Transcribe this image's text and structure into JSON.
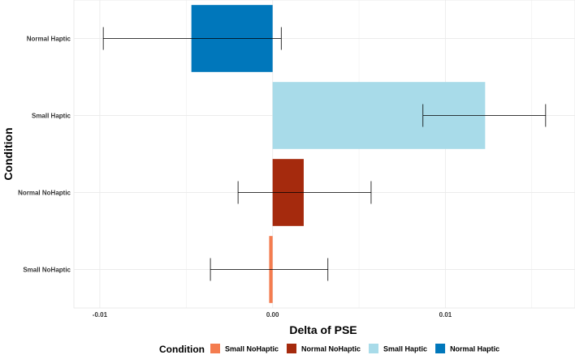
{
  "chart_data": {
    "type": "bar",
    "orientation": "horizontal",
    "xlabel": "Delta of PSE",
    "ylabel": "Condition",
    "xlim": [
      -0.0115,
      0.0175
    ],
    "xticks": [
      -0.01,
      0.0,
      0.01
    ],
    "xtick_labels": [
      "-0.01",
      "0.00",
      "0.01"
    ],
    "categories": [
      "Small NoHaptic",
      "Normal NoHaptic",
      "Small Haptic",
      "Normal Haptic"
    ],
    "values": [
      -0.0002,
      0.0018,
      0.0123,
      -0.0047
    ],
    "error_low": [
      -0.0036,
      -0.002,
      0.0087,
      -0.0098
    ],
    "error_high": [
      0.0032,
      0.0057,
      0.0158,
      0.0005
    ],
    "colors": [
      "#f47c4f",
      "#a52a0d",
      "#a8dbe9",
      "#0077bb"
    ],
    "grid": true,
    "legend": {
      "title": "Condition",
      "position": "bottom",
      "entries": [
        "Small NoHaptic",
        "Normal NoHaptic",
        "Small Haptic",
        "Normal Haptic"
      ]
    }
  }
}
